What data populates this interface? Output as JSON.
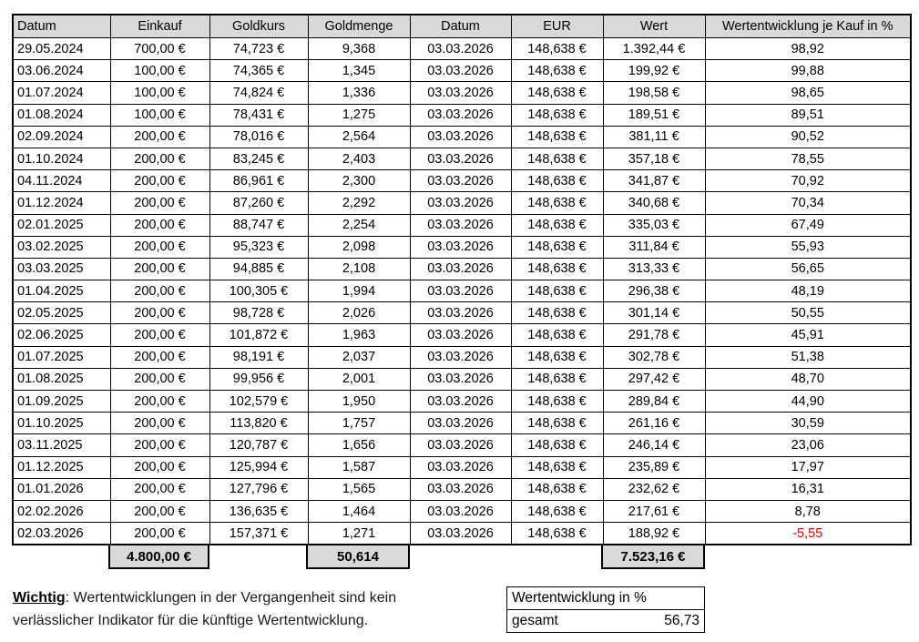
{
  "colors": {
    "header_bg": "#d9d9d9",
    "totals_bg": "#d9d9d9",
    "border": "#000000",
    "negative_text": "#e00000"
  },
  "main_table": {
    "headers": [
      "Datum",
      "Einkauf",
      "Goldkurs",
      "Goldmenge",
      "Datum",
      "EUR",
      "Wert",
      "Wertentwicklung je Kauf in %"
    ],
    "rows": [
      [
        "29.05.2024",
        "700,00 €",
        "74,723 €",
        "9,368",
        "03.03.2026",
        "148,638 €",
        "1.392,44 €",
        "98,92"
      ],
      [
        "03.06.2024",
        "100,00 €",
        "74,365 €",
        "1,345",
        "03.03.2026",
        "148,638 €",
        "199,92 €",
        "99,88"
      ],
      [
        "01.07.2024",
        "100,00 €",
        "74,824 €",
        "1,336",
        "03.03.2026",
        "148,638 €",
        "198,58 €",
        "98,65"
      ],
      [
        "01.08.2024",
        "100,00 €",
        "78,431 €",
        "1,275",
        "03.03.2026",
        "148,638 €",
        "189,51 €",
        "89,51"
      ],
      [
        "02.09.2024",
        "200,00 €",
        "78,016 €",
        "2,564",
        "03.03.2026",
        "148,638 €",
        "381,11 €",
        "90,52"
      ],
      [
        "01.10.2024",
        "200,00 €",
        "83,245 €",
        "2,403",
        "03.03.2026",
        "148,638 €",
        "357,18 €",
        "78,55"
      ],
      [
        "04.11.2024",
        "200,00 €",
        "86,961 €",
        "2,300",
        "03.03.2026",
        "148,638 €",
        "341,87 €",
        "70,92"
      ],
      [
        "01.12.2024",
        "200,00 €",
        "87,260 €",
        "2,292",
        "03.03.2026",
        "148,638 €",
        "340,68 €",
        "70,34"
      ],
      [
        "02.01.2025",
        "200,00 €",
        "88,747 €",
        "2,254",
        "03.03.2026",
        "148,638 €",
        "335,03 €",
        "67,49"
      ],
      [
        "03.02.2025",
        "200,00 €",
        "95,323 €",
        "2,098",
        "03.03.2026",
        "148,638 €",
        "311,84 €",
        "55,93"
      ],
      [
        "03.03.2025",
        "200,00 €",
        "94,885 €",
        "2,108",
        "03.03.2026",
        "148,638 €",
        "313,33 €",
        "56,65"
      ],
      [
        "01.04.2025",
        "200,00 €",
        "100,305 €",
        "1,994",
        "03.03.2026",
        "148,638 €",
        "296,38 €",
        "48,19"
      ],
      [
        "02.05.2025",
        "200,00 €",
        "98,728 €",
        "2,026",
        "03.03.2026",
        "148,638 €",
        "301,14 €",
        "50,55"
      ],
      [
        "02.06.2025",
        "200,00 €",
        "101,872 €",
        "1,963",
        "03.03.2026",
        "148,638 €",
        "291,78 €",
        "45,91"
      ],
      [
        "01.07.2025",
        "200,00 €",
        "98,191 €",
        "2,037",
        "03.03.2026",
        "148,638 €",
        "302,78 €",
        "51,38"
      ],
      [
        "01.08.2025",
        "200,00 €",
        "99,956 €",
        "2,001",
        "03.03.2026",
        "148,638 €",
        "297,42 €",
        "48,70"
      ],
      [
        "01.09.2025",
        "200,00 €",
        "102,579 €",
        "1,950",
        "03.03.2026",
        "148,638 €",
        "289,84 €",
        "44,90"
      ],
      [
        "01.10.2025",
        "200,00 €",
        "113,820 €",
        "1,757",
        "03.03.2026",
        "148,638 €",
        "261,16 €",
        "30,59"
      ],
      [
        "03.11.2025",
        "200,00 €",
        "120,787 €",
        "1,656",
        "03.03.2026",
        "148,638 €",
        "246,14 €",
        "23,06"
      ],
      [
        "01.12.2025",
        "200,00 €",
        "125,994 €",
        "1,587",
        "03.03.2026",
        "148,638 €",
        "235,89 €",
        "17,97"
      ],
      [
        "01.01.2026",
        "200,00 €",
        "127,796 €",
        "1,565",
        "03.03.2026",
        "148,638 €",
        "232,62 €",
        "16,31"
      ],
      [
        "02.02.2026",
        "200,00 €",
        "136,635 €",
        "1,464",
        "03.03.2026",
        "148,638 €",
        "217,61 €",
        "8,78"
      ],
      [
        "02.03.2026",
        "200,00 €",
        "157,371 €",
        "1,271",
        "03.03.2026",
        "148,638 €",
        "188,92 €",
        "-5,55"
      ]
    ],
    "totals": {
      "einkauf": "4.800,00 €",
      "goldmenge": "50,614",
      "wert": "7.523,16 €"
    }
  },
  "note": {
    "line1_bold": "Wichtig",
    "line1_rest": ": Wertentwicklungen in der Vergangenheit sind kein",
    "line2": "verlässlicher Indikator für die künftige Wertentwicklung."
  },
  "summary_table": {
    "title": "Wertentwicklung in %",
    "row_label": "gesamt",
    "row_value": "56,73"
  }
}
